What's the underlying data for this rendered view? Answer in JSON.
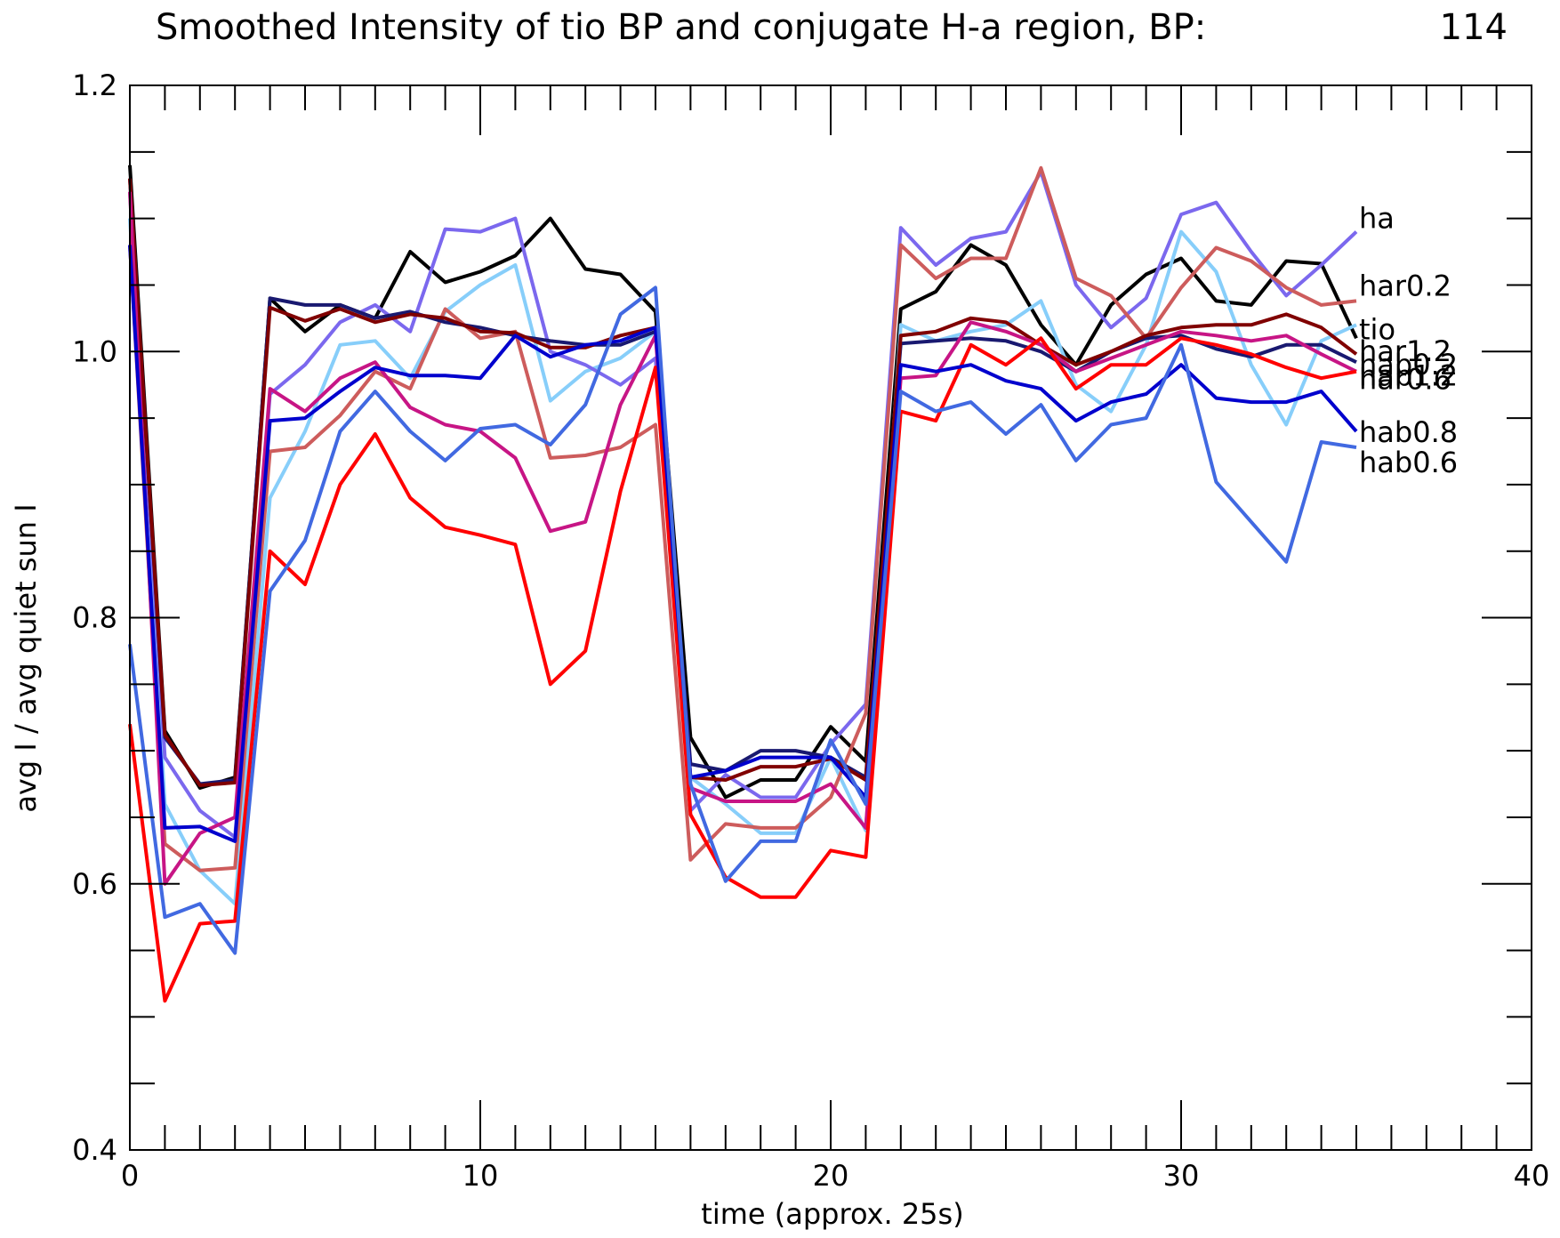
{
  "chart_data": {
    "type": "line",
    "title": "Smoothed Intensity of tio BP and conjugate H-a region, BP:",
    "title_value": "114",
    "xlabel": "time (approx. 25s)",
    "ylabel": "avg I / avg quiet sun I",
    "xlim": [
      0,
      40
    ],
    "ylim": [
      0.4,
      1.2
    ],
    "x_ticks": [
      "0",
      "10",
      "20",
      "30",
      "40"
    ],
    "y_ticks": [
      "0.4",
      "0.6",
      "0.8",
      "1.0",
      "1.2"
    ],
    "grid": false,
    "legend": "inline labels at line ends",
    "series": [
      {
        "color": "#000000",
        "values": [
          1.14,
          0.715,
          0.672,
          0.68,
          1.04,
          1.015,
          1.035,
          1.025,
          1.075,
          1.052,
          1.06,
          1.072,
          1.1,
          1.062,
          1.058,
          1.03,
          0.71,
          0.665,
          0.678,
          0.678,
          0.718,
          0.692,
          1.032,
          1.045,
          1.08,
          1.065,
          1.02,
          0.99,
          1.035,
          1.058,
          1.07,
          1.038,
          1.035,
          1.068,
          1.066,
          1.01
        ]
      },
      {
        "name": "tio",
        "color": "#87CEFA",
        "values": [
          1.1,
          0.66,
          0.61,
          0.585,
          0.89,
          0.94,
          1.005,
          1.008,
          0.98,
          1.03,
          1.05,
          1.065,
          0.963,
          0.985,
          0.995,
          1.015,
          0.68,
          0.66,
          0.638,
          0.638,
          0.695,
          0.64,
          1.02,
          1.008,
          1.015,
          1.02,
          1.038,
          0.975,
          0.955,
          1.005,
          1.09,
          1.06,
          0.99,
          0.945,
          1.008,
          1.02
        ]
      },
      {
        "name": "ha",
        "color": "#7B68EE",
        "values": [
          1.12,
          0.695,
          0.655,
          0.635,
          0.968,
          0.99,
          1.022,
          1.035,
          1.015,
          1.092,
          1.09,
          1.1,
          1.0,
          0.99,
          0.975,
          0.995,
          0.655,
          0.682,
          0.665,
          0.665,
          0.705,
          0.735,
          1.093,
          1.065,
          1.085,
          1.09,
          1.135,
          1.05,
          1.018,
          1.04,
          1.103,
          1.112,
          1.075,
          1.042,
          1.065,
          1.09
        ]
      },
      {
        "name": "har0.2",
        "color": "#CD5C5C",
        "values": [
          1.08,
          0.63,
          0.61,
          0.612,
          0.925,
          0.928,
          0.952,
          0.985,
          0.972,
          1.032,
          1.01,
          1.015,
          0.92,
          0.922,
          0.928,
          0.945,
          0.618,
          0.645,
          0.642,
          0.642,
          0.665,
          0.728,
          1.08,
          1.055,
          1.07,
          1.07,
          1.138,
          1.055,
          1.042,
          1.01,
          1.048,
          1.078,
          1.068,
          1.048,
          1.035,
          1.038
        ]
      },
      {
        "name": "hab0.2",
        "color": "#191970",
        "values": [
          1.13,
          0.71,
          0.675,
          0.678,
          1.04,
          1.035,
          1.035,
          1.025,
          1.03,
          1.022,
          1.018,
          1.012,
          1.008,
          1.005,
          1.005,
          1.015,
          0.69,
          0.685,
          0.7,
          0.7,
          0.695,
          0.68,
          1.006,
          1.008,
          1.01,
          1.008,
          1.0,
          0.985,
          1.0,
          1.01,
          1.012,
          1.002,
          0.996,
          1.005,
          1.005,
          0.992
        ]
      },
      {
        "name": "har1.2",
        "color": "#800000",
        "values": [
          1.13,
          0.712,
          0.674,
          0.676,
          1.033,
          1.023,
          1.032,
          1.022,
          1.028,
          1.025,
          1.015,
          1.014,
          1.003,
          1.003,
          1.012,
          1.018,
          0.68,
          0.678,
          0.688,
          0.688,
          0.694,
          0.678,
          1.012,
          1.015,
          1.025,
          1.022,
          1.005,
          0.99,
          1.0,
          1.012,
          1.018,
          1.02,
          1.02,
          1.028,
          1.018,
          0.998
        ]
      },
      {
        "name": "hab1.2",
        "color": "#C71585",
        "values": [
          1.12,
          0.6,
          0.638,
          0.65,
          0.972,
          0.955,
          0.98,
          0.992,
          0.958,
          0.945,
          0.94,
          0.92,
          0.865,
          0.872,
          0.96,
          1.012,
          0.672,
          0.662,
          0.662,
          0.662,
          0.675,
          0.642,
          0.98,
          0.982,
          1.022,
          1.015,
          1.005,
          0.985,
          0.995,
          1.005,
          1.015,
          1.012,
          1.008,
          1.012,
          0.998,
          0.985
        ]
      },
      {
        "name": "har0.6",
        "color": "#FF0000",
        "values": [
          0.72,
          0.512,
          0.57,
          0.572,
          0.85,
          0.825,
          0.9,
          0.938,
          0.89,
          0.868,
          0.862,
          0.855,
          0.75,
          0.775,
          0.895,
          0.988,
          0.652,
          0.605,
          0.59,
          0.59,
          0.625,
          0.62,
          0.955,
          0.948,
          1.005,
          0.99,
          1.01,
          0.972,
          0.99,
          0.99,
          1.01,
          1.005,
          0.998,
          0.988,
          0.98,
          0.985
        ]
      },
      {
        "name": "hab0.8",
        "color": "#0000CD",
        "values": [
          1.08,
          0.642,
          0.643,
          0.632,
          0.948,
          0.95,
          0.97,
          0.988,
          0.982,
          0.982,
          0.98,
          1.012,
          0.996,
          1.005,
          1.008,
          1.018,
          0.68,
          0.685,
          0.695,
          0.695,
          0.695,
          0.665,
          0.99,
          0.985,
          0.99,
          0.978,
          0.972,
          0.948,
          0.962,
          0.968,
          0.99,
          0.965,
          0.962,
          0.962,
          0.97,
          0.94
        ]
      },
      {
        "name": "hab0.6",
        "color": "#4169E1",
        "values": [
          0.78,
          0.575,
          0.585,
          0.548,
          0.82,
          0.858,
          0.94,
          0.97,
          0.94,
          0.918,
          0.942,
          0.945,
          0.93,
          0.96,
          1.028,
          1.048,
          0.675,
          0.602,
          0.632,
          0.632,
          0.708,
          0.66,
          0.97,
          0.955,
          0.962,
          0.938,
          0.96,
          0.918,
          0.945,
          0.95,
          1.005,
          0.902,
          0.872,
          0.842,
          0.932,
          0.928
        ]
      }
    ],
    "annotations": [
      "ha",
      "har0.2",
      "hab0.2",
      "tio",
      "har1.2",
      "hab1.2",
      "har0.6",
      "hab0.8",
      "hab0.6"
    ]
  }
}
